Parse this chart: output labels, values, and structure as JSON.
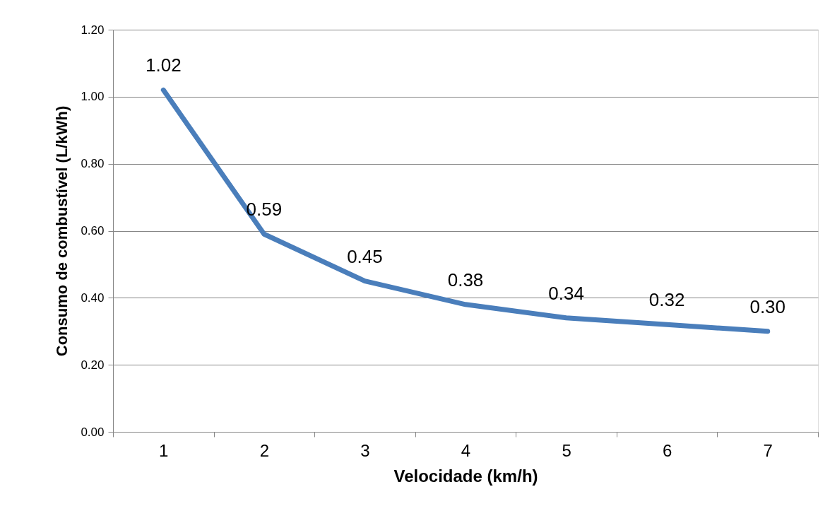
{
  "chart_data": {
    "type": "line",
    "xlabel": "Velocidade (km/h)",
    "ylabel": "Consumo de combustível (L/kWh)",
    "categories": [
      "1",
      "2",
      "3",
      "4",
      "5",
      "6",
      "7"
    ],
    "series": [
      {
        "color": "#4a7ebb",
        "values": [
          1.02,
          0.59,
          0.45,
          0.38,
          0.34,
          0.32,
          0.3
        ],
        "value_labels": [
          "1.02",
          "0.59",
          "0.45",
          "0.38",
          "0.34",
          "0.32",
          "0.30"
        ]
      }
    ],
    "ylim": [
      0,
      1.2
    ],
    "yticks": [
      {
        "value": 0,
        "label": "0.00"
      },
      {
        "value": 0.2,
        "label": "0.20"
      },
      {
        "value": 0.4,
        "label": "0.40"
      },
      {
        "value": 0.6,
        "label": "0.60"
      },
      {
        "value": 0.8,
        "label": "0.80"
      },
      {
        "value": 1.0,
        "label": "1.00"
      },
      {
        "value": 1.2,
        "label": "1.20"
      }
    ],
    "grid": "y",
    "marker": "none",
    "line_style": "solid"
  }
}
